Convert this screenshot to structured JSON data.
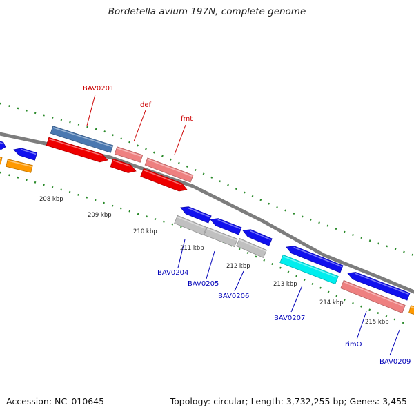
{
  "title": "Bordetella avium 197N, complete genome",
  "footer": {
    "accession": "Accession: NC_010645",
    "summary": "Topology: circular; Length: 3,732,255 bp; Genes: 3,455"
  },
  "colors": {
    "backbone": "#7d7d7d",
    "tick": "#2a8a2a",
    "label_red": "#cc0000",
    "label_blue": "#0000b8",
    "scale_text": "#222222"
  },
  "scale_ticks": [
    "208 kbp",
    "209 kbp",
    "210 kbp",
    "211 kbp",
    "212 kbp",
    "213 kbp",
    "214 kbp",
    "215 kbp"
  ],
  "gene_labels": [
    {
      "text": "BAV0201",
      "color": "red"
    },
    {
      "text": "def",
      "color": "red"
    },
    {
      "text": "fmt",
      "color": "red"
    },
    {
      "text": "BAV0204",
      "color": "blue"
    },
    {
      "text": "BAV0205",
      "color": "blue"
    },
    {
      "text": "BAV0206",
      "color": "blue"
    },
    {
      "text": "BAV0207",
      "color": "blue"
    },
    {
      "text": "rimO",
      "color": "blue"
    },
    {
      "text": "BAV0209",
      "color": "blue"
    }
  ],
  "features": [
    {
      "name": "blue-cds-left-edge",
      "color": "#1010ee"
    },
    {
      "name": "orange-cds-left-edge",
      "color": "#ff9900"
    },
    {
      "name": "blue-cds-left",
      "color": "#1010ee"
    },
    {
      "name": "steelblue-cds-bav0201",
      "color": "#4a78b0"
    },
    {
      "name": "red-cds-bav0201",
      "color": "#ee0000"
    },
    {
      "name": "pink-cds-def",
      "color": "#ee8080"
    },
    {
      "name": "red-cds-def",
      "color": "#ee0000"
    },
    {
      "name": "pink-cds-fmt",
      "color": "#ee8080"
    },
    {
      "name": "red-cds-fmt",
      "color": "#ee0000"
    },
    {
      "name": "blue-cds-bav0204",
      "color": "#1010ee"
    },
    {
      "name": "grey-cds-bav0204",
      "color": "#c0c0c0"
    },
    {
      "name": "blue-cds-bav0205",
      "color": "#1010ee"
    },
    {
      "name": "grey-cds-bav0205",
      "color": "#c0c0c0"
    },
    {
      "name": "blue-cds-bav0206",
      "color": "#1010ee"
    },
    {
      "name": "grey-cds-bav0206",
      "color": "#c0c0c0"
    },
    {
      "name": "blue-cds-bav0207",
      "color": "#1010ee"
    },
    {
      "name": "cyan-cds-bav0207",
      "color": "#00eeee"
    },
    {
      "name": "blue-cds-rimo",
      "color": "#1010ee"
    },
    {
      "name": "pink-cds-rimo",
      "color": "#ee8080"
    },
    {
      "name": "orange-cds-bav0209",
      "color": "#ff9900"
    }
  ]
}
